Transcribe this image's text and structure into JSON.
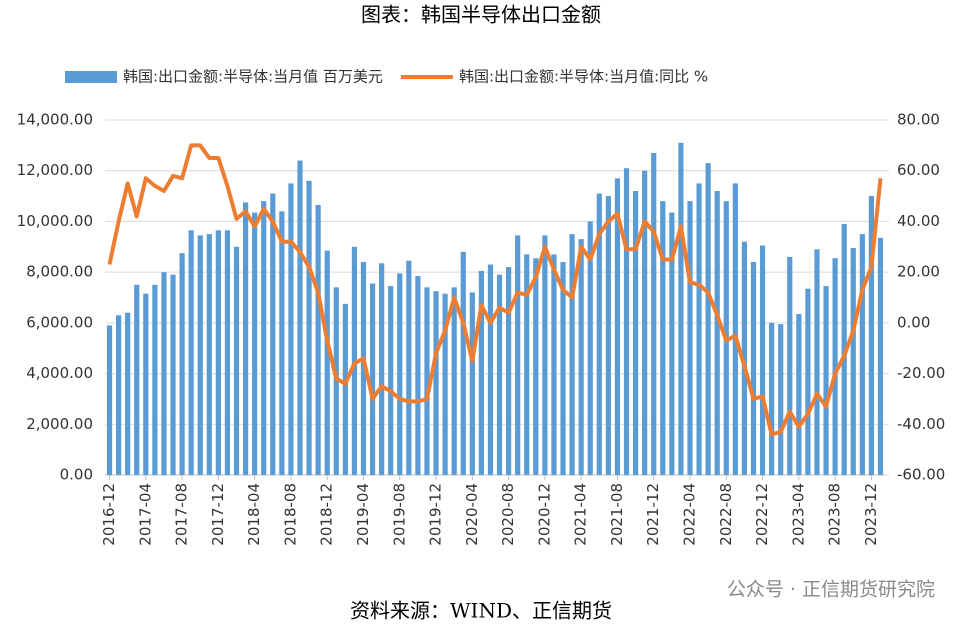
{
  "chart_data": {
    "type": "bar-line",
    "title": "图表：韩国半导体出口金额",
    "source": "资料来源：WIND、正信期货",
    "watermark": "公众号 · 正信期货研究院",
    "categories": [
      "2016-12",
      null,
      null,
      null,
      "2017-04",
      null,
      null,
      null,
      "2017-08",
      null,
      null,
      null,
      "2017-12",
      null,
      null,
      null,
      "2018-04",
      null,
      null,
      null,
      "2018-08",
      null,
      null,
      null,
      "2018-12",
      null,
      null,
      null,
      "2019-04",
      null,
      null,
      null,
      "2019-08",
      null,
      null,
      null,
      "2019-12",
      null,
      null,
      null,
      "2020-04",
      null,
      null,
      null,
      "2020-08",
      null,
      null,
      null,
      "2020-12",
      null,
      null,
      null,
      "2021-04",
      null,
      null,
      null,
      "2021-08",
      null,
      null,
      null,
      "2021-12",
      null,
      null,
      null,
      "2022-04",
      null,
      null,
      null,
      "2022-08",
      null,
      null,
      null,
      "2022-12",
      null,
      null,
      null,
      "2023-04",
      null,
      null,
      null,
      "2023-08",
      null,
      null,
      null,
      "2023-12",
      null
    ],
    "series": [
      {
        "name": "韩国:出口金额:半导体:当月值 百万美元",
        "color": "#5b9bd5",
        "kind": "bar",
        "axis": "y",
        "values": [
          5900,
          6300,
          6400,
          7500,
          7150,
          7500,
          8000,
          7900,
          8750,
          9650,
          9450,
          9500,
          9650,
          9650,
          9000,
          10750,
          10350,
          10800,
          11100,
          10400,
          11500,
          12400,
          11600,
          10650,
          8850,
          7400,
          6750,
          9000,
          8400,
          7550,
          8350,
          7450,
          7950,
          8450,
          7850,
          7400,
          7250,
          7150,
          7400,
          8800,
          7200,
          8050,
          8300,
          7900,
          8200,
          9450,
          8700,
          8550,
          9450,
          8700,
          8400,
          9500,
          9300,
          10000,
          11100,
          11000,
          11700,
          12100,
          11200,
          12000,
          12700,
          10800,
          10350,
          13100,
          10800,
          11500,
          12300,
          11200,
          10800,
          11500,
          9200,
          8400,
          9050,
          6000,
          5950,
          8600,
          6350,
          7350,
          8900,
          7450,
          8550,
          9900,
          8950,
          9500,
          11000,
          9350
        ]
      },
      {
        "name": "韩国:出口金额:半导体:当月值:同比 %",
        "color": "#ed7d31",
        "kind": "line",
        "axis": "y2",
        "values": [
          23,
          40,
          55,
          42,
          57,
          54,
          52,
          58,
          57,
          70,
          70,
          65,
          65,
          54,
          41,
          44,
          38,
          45,
          40,
          32,
          32,
          28,
          22,
          12,
          -7,
          -22,
          -24,
          -16,
          -14,
          -30,
          -25,
          -27,
          -30,
          -31,
          -31,
          -30,
          -12,
          -3,
          10,
          0,
          -15,
          7,
          0,
          6,
          4,
          12,
          11,
          18,
          30,
          21,
          13,
          10,
          30,
          25,
          35,
          40,
          43,
          29,
          29,
          40,
          36,
          25,
          25,
          38,
          16,
          15,
          12,
          3,
          -7,
          -5,
          -17,
          -30,
          -29,
          -44,
          -43,
          -35,
          -41,
          -36,
          -28,
          -33,
          -20,
          -13,
          -3,
          13,
          22,
          57
        ]
      }
    ],
    "ylim": [
      0,
      14000
    ],
    "yticks": [
      {
        "value": 0,
        "label": "0.00"
      },
      {
        "value": 2000,
        "label": "2,000.00"
      },
      {
        "value": 4000,
        "label": "4,000.00"
      },
      {
        "value": 6000,
        "label": "6,000.00"
      },
      {
        "value": 8000,
        "label": "8,000.00"
      },
      {
        "value": 10000,
        "label": "10,000.00"
      },
      {
        "value": 12000,
        "label": "12,000.00"
      },
      {
        "value": 14000,
        "label": "14,000.00"
      }
    ],
    "y2lim": [
      -60,
      80
    ],
    "y2ticks": [
      {
        "value": -60,
        "label": "-60.00"
      },
      {
        "value": -40,
        "label": "-40.00"
      },
      {
        "value": -20,
        "label": "-20.00"
      },
      {
        "value": 0,
        "label": "0.00"
      },
      {
        "value": 20,
        "label": "20.00"
      },
      {
        "value": 40,
        "label": "40.00"
      },
      {
        "value": 60,
        "label": "60.00"
      },
      {
        "value": 80,
        "label": "80.00"
      }
    ],
    "grid": true,
    "legend": "top"
  }
}
